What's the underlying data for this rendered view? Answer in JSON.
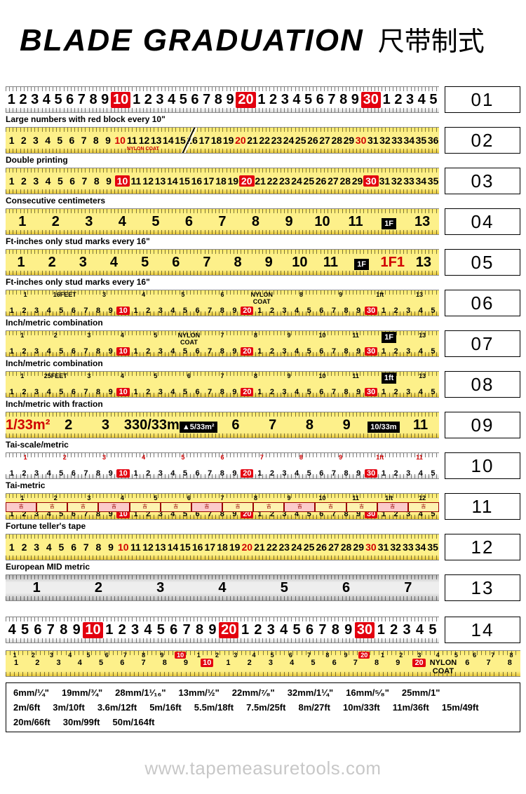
{
  "title_en": "BLADE GRADUATION",
  "title_cn": "尺带制式",
  "colors": {
    "white_bg": "#ffffff",
    "yellow_bg": "#fdf08a",
    "silver_bg": "#dddddd",
    "red": "#e3000f",
    "black": "#000000"
  },
  "tapes": [
    {
      "num": "01",
      "desc": "Large numbers with red block every 10\"",
      "style": "white",
      "numbers": [
        "1",
        "2",
        "3",
        "4",
        "5",
        "6",
        "7",
        "8",
        "9",
        "10",
        "1",
        "2",
        "3",
        "4",
        "5",
        "6",
        "7",
        "8",
        "9",
        "20",
        "1",
        "2",
        "3",
        "4",
        "5",
        "6",
        "7",
        "8",
        "9",
        "30",
        "1",
        "2",
        "3",
        "4",
        "5"
      ],
      "red_indices": [
        9,
        19,
        29
      ],
      "font": "big"
    },
    {
      "num": "02",
      "desc": "Double printing",
      "style": "yellow",
      "numbers": [
        "1",
        "2",
        "3",
        "4",
        "5",
        "6",
        "7",
        "8",
        "9",
        "10",
        "11",
        "12",
        "13",
        "14",
        "15",
        "16",
        "17",
        "18",
        "19",
        "20",
        "21",
        "22",
        "23",
        "24",
        "25",
        "26",
        "27",
        "28",
        "29",
        "30",
        "31",
        "32",
        "33",
        "34",
        "35",
        "36"
      ],
      "red_txt_indices": [
        9,
        19,
        29
      ],
      "font": "mid",
      "split": true,
      "nylon": "NYLON COAT"
    },
    {
      "num": "03",
      "desc": "Consecutive centimeters",
      "style": "yellow",
      "numbers": [
        "1",
        "2",
        "3",
        "4",
        "5",
        "6",
        "7",
        "8",
        "9",
        "10",
        "11",
        "12",
        "13",
        "14",
        "15",
        "16",
        "17",
        "18",
        "19",
        "20",
        "21",
        "22",
        "23",
        "24",
        "25",
        "26",
        "27",
        "28",
        "29",
        "30",
        "31",
        "32",
        "33",
        "34",
        "35"
      ],
      "red_indices": [
        9,
        19,
        29
      ],
      "font": "mid"
    },
    {
      "num": "04",
      "desc": "Ft-inches only stud marks every 16\"",
      "style": "yellow",
      "numbers": [
        "1",
        "2",
        "3",
        "4",
        "5",
        "6",
        "7",
        "8",
        "9",
        "10",
        "11",
        "1F",
        "13"
      ],
      "black_block_indices": [
        11
      ],
      "font": "big"
    },
    {
      "num": "05",
      "desc": "Ft-inches only stud marks every 16\"",
      "style": "yellow",
      "numbers": [
        "1",
        "2",
        "3",
        "4",
        "5",
        "6",
        "7",
        "8",
        "9",
        "10",
        "11",
        "1F",
        "1F1",
        "13"
      ],
      "black_block_indices": [
        11
      ],
      "red_txt_indices": [
        12
      ],
      "font": "big"
    },
    {
      "num": "06",
      "desc": "Inch/metric combination",
      "style": "yellow",
      "top_numbers": [
        "1",
        "16FEET",
        "3",
        "4",
        "5",
        "6",
        "NYLON COAT",
        "8",
        "9",
        "1ft",
        "13"
      ],
      "bottom_numbers": [
        "1",
        "2",
        "3",
        "4",
        "5",
        "6",
        "7",
        "8",
        "9",
        "10",
        "1",
        "2",
        "3",
        "4",
        "5",
        "6",
        "7",
        "8",
        "9",
        "20",
        "1",
        "2",
        "3",
        "4",
        "5",
        "6",
        "7",
        "8",
        "9",
        "30",
        "1",
        "2",
        "3",
        "4",
        "5"
      ],
      "bottom_red": [
        9,
        19,
        29
      ],
      "font": "small"
    },
    {
      "num": "07",
      "desc": "Inch/metric combination",
      "style": "yellow",
      "top_numbers": [
        "1",
        "2",
        "3",
        "4",
        "5",
        "NYLON COAT",
        "7",
        "8",
        "9",
        "10",
        "11",
        "1F",
        "13"
      ],
      "bottom_numbers": [
        "1",
        "2",
        "3",
        "4",
        "5",
        "6",
        "7",
        "8",
        "9",
        "10",
        "1",
        "2",
        "3",
        "4",
        "5",
        "6",
        "7",
        "8",
        "9",
        "20",
        "1",
        "2",
        "3",
        "4",
        "5",
        "6",
        "7",
        "8",
        "9",
        "30",
        "1",
        "2",
        "3",
        "4",
        "5"
      ],
      "bottom_red": [
        9,
        19,
        29
      ],
      "top_black_block": [
        11
      ],
      "font": "small"
    },
    {
      "num": "08",
      "desc": "Inch/metric with fraction",
      "style": "yellow",
      "top_numbers": [
        "1",
        "25FEET",
        "3",
        "4",
        "5",
        "6",
        "7",
        "8",
        "9",
        "10",
        "11",
        "1ft",
        "13"
      ],
      "bottom_numbers": [
        "1",
        "2",
        "3",
        "4",
        "5",
        "6",
        "7",
        "8",
        "9",
        "10",
        "1",
        "2",
        "3",
        "4",
        "5",
        "6",
        "7",
        "8",
        "9",
        "20",
        "1",
        "2",
        "3",
        "4",
        "5",
        "6",
        "7",
        "8",
        "9",
        "30",
        "1",
        "2",
        "3",
        "4",
        "5"
      ],
      "bottom_red": [
        9,
        19,
        29
      ],
      "top_black_block": [
        11
      ],
      "font": "small"
    },
    {
      "num": "09",
      "desc": "Tai-scale/metric",
      "style": "yellow",
      "numbers": [
        "1/33m²",
        "2",
        "3",
        "330/33m",
        "▲5/33m²",
        "6",
        "7",
        "8",
        "9",
        "10/33m",
        "11"
      ],
      "black_block_indices": [
        4,
        9
      ],
      "red_txt_indices": [
        0,
        4,
        9
      ],
      "font": "big"
    },
    {
      "num": "10",
      "desc": "Tai-metric",
      "style": "white",
      "top_numbers": [
        "1",
        "2",
        "3",
        "4",
        "5",
        "6",
        "7",
        "8",
        "9",
        "1ft",
        "11"
      ],
      "bottom_numbers": [
        "1",
        "2",
        "3",
        "4",
        "5",
        "6",
        "7",
        "8",
        "9",
        "10",
        "1",
        "2",
        "3",
        "4",
        "5",
        "6",
        "7",
        "8",
        "9",
        "20",
        "1",
        "2",
        "3",
        "4",
        "5",
        "6",
        "7",
        "8",
        "9",
        "30",
        "1",
        "2",
        "3",
        "4",
        "5"
      ],
      "bottom_red": [
        9,
        19,
        29
      ],
      "all_red_top": true,
      "font": "small"
    },
    {
      "num": "11",
      "desc": "Fortune teller's tape",
      "style": "yellow",
      "top_numbers": [
        "1",
        "2",
        "3",
        "4",
        "5",
        "6",
        "7",
        "8",
        "9",
        "10",
        "11",
        "1ft",
        "12"
      ],
      "bottom_numbers": [
        "1",
        "2",
        "3",
        "4",
        "5",
        "6",
        "7",
        "8",
        "9",
        "10",
        "1",
        "2",
        "3",
        "4",
        "5",
        "6",
        "7",
        "8",
        "9",
        "20",
        "1",
        "2",
        "3",
        "4",
        "5",
        "6",
        "7",
        "8",
        "9",
        "30",
        "1",
        "2",
        "3",
        "4",
        "5"
      ],
      "bottom_red": [
        9,
        19,
        29
      ],
      "fortune": true,
      "font": "small"
    },
    {
      "num": "12",
      "desc": "European MID metric",
      "style": "yellow",
      "numbers": [
        "1",
        "2",
        "3",
        "4",
        "5",
        "6",
        "7",
        "8",
        "9",
        "10",
        "11",
        "12",
        "13",
        "14",
        "15",
        "16",
        "17",
        "18",
        "19",
        "20",
        "21",
        "22",
        "23",
        "24",
        "25",
        "26",
        "27",
        "28",
        "29",
        "30",
        "31",
        "32",
        "33",
        "34",
        "35"
      ],
      "red_txt_indices": [
        9,
        19,
        29
      ],
      "font": "mid"
    },
    {
      "num": "13",
      "desc": "",
      "style": "silver",
      "numbers": [
        "1",
        "2",
        "3",
        "4",
        "5",
        "6",
        "7"
      ],
      "font": "big"
    },
    {
      "num": "14",
      "desc": "",
      "style": "white",
      "numbers": [
        "4",
        "5",
        "6",
        "7",
        "8",
        "9",
        "10",
        "1",
        "2",
        "3",
        "4",
        "5",
        "6",
        "7",
        "8",
        "9",
        "20",
        "1",
        "2",
        "3",
        "4",
        "5",
        "6",
        "7",
        "8",
        "9",
        "30",
        "1",
        "2",
        "3",
        "4",
        "5"
      ],
      "red_indices": [
        6,
        16,
        26
      ],
      "font": "big",
      "spacer_before": true
    }
  ],
  "extra_tape": {
    "style": "yellow",
    "top_numbers": [
      "1",
      "2",
      "3",
      "4",
      "5",
      "6",
      "7",
      "8",
      "9",
      "10",
      "1",
      "2",
      "3",
      "4",
      "5",
      "6",
      "7",
      "8",
      "9",
      "20",
      "1",
      "2",
      "3",
      "4",
      "5",
      "6",
      "7",
      "8"
    ],
    "top_red": [
      9,
      19
    ],
    "bottom_numbers": [
      "1",
      "2",
      "3",
      "4",
      "5",
      "6",
      "7",
      "8",
      "9",
      "10",
      "1",
      "2",
      "3",
      "4",
      "5",
      "6",
      "7",
      "8",
      "9",
      "20",
      "NYLON COAT",
      "6",
      "7",
      "8"
    ],
    "bottom_red": [
      9,
      19
    ]
  },
  "footer": {
    "line1": [
      "6mm/¼\"",
      "19mm/¾\"",
      "28mm/1¹⁄₁₆\"",
      "13mm/½\"",
      "22mm/⁷⁄₈\"",
      "32mm/1¼\"",
      "16mm/⁵⁄₈\"",
      "25mm/1\""
    ],
    "line2": [
      "2m/6ft",
      "3m/10ft",
      "3.6m/12ft",
      "5m/16ft",
      "5.5m/18ft",
      "7.5m/25ft",
      "8m/27ft",
      "10m/33ft",
      "11m/36ft",
      "15m/49ft"
    ],
    "line3": [
      "20m/66ft",
      "30m/99ft",
      "50m/164ft"
    ]
  },
  "watermark": "www.tapemeasuretools.com"
}
